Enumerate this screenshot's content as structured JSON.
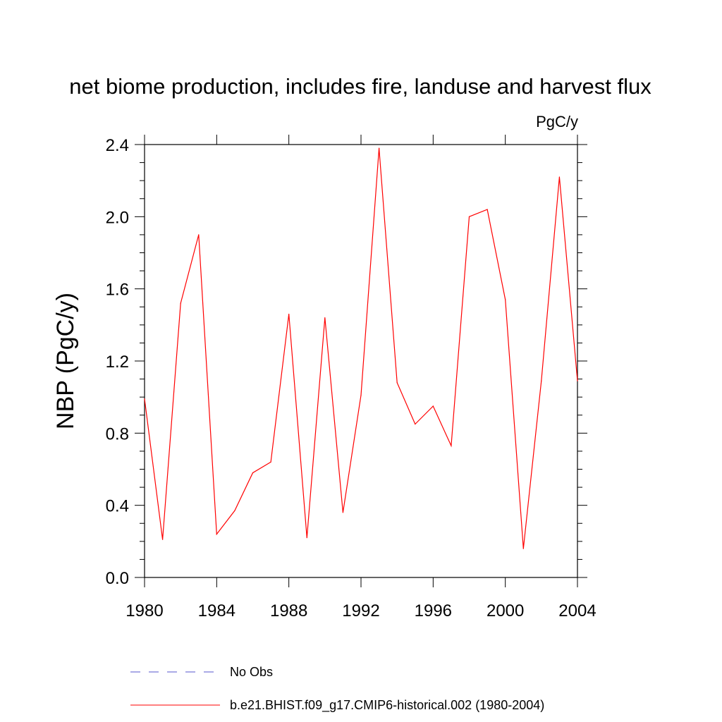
{
  "chart_data": {
    "type": "line",
    "title": "net biome production, includes fire, landuse and harvest flux",
    "units": "PgC/y",
    "xlabel": "",
    "ylabel": "NBP  (PgC/y)",
    "xlim": [
      1980,
      2004
    ],
    "ylim": [
      0.0,
      2.4
    ],
    "x_ticks": [
      "1980",
      "1984",
      "1988",
      "1992",
      "1996",
      "2000",
      "2004"
    ],
    "y_ticks": [
      "0.0",
      "0.4",
      "0.8",
      "1.2",
      "1.6",
      "2.0",
      "2.4"
    ],
    "grid": false,
    "legend_position": "bottom",
    "series": [
      {
        "name": "b.e21.BHIST.f09_g17.CMIP6-historical.002 (1980-2004)",
        "color": "#ff0000",
        "style": "solid",
        "x": [
          1980,
          1981,
          1982,
          1983,
          1984,
          1985,
          1986,
          1987,
          1988,
          1989,
          1990,
          1991,
          1992,
          1993,
          1994,
          1995,
          1996,
          1997,
          1998,
          1999,
          2000,
          2001,
          2002,
          2003,
          2004
        ],
        "values": [
          0.99,
          0.21,
          1.52,
          1.9,
          0.24,
          0.37,
          0.58,
          0.64,
          1.46,
          0.22,
          1.44,
          0.36,
          1.01,
          2.38,
          1.08,
          0.85,
          0.95,
          0.73,
          2.0,
          2.04,
          1.54,
          0.16,
          1.09,
          2.22,
          1.09
        ]
      }
    ],
    "legend": [
      {
        "label": "No Obs",
        "color": "#5555cc",
        "style": "dashed"
      },
      {
        "label": "b.e21.BHIST.f09_g17.CMIP6-historical.002 (1980-2004)",
        "color": "#ff0000",
        "style": "solid"
      }
    ]
  }
}
